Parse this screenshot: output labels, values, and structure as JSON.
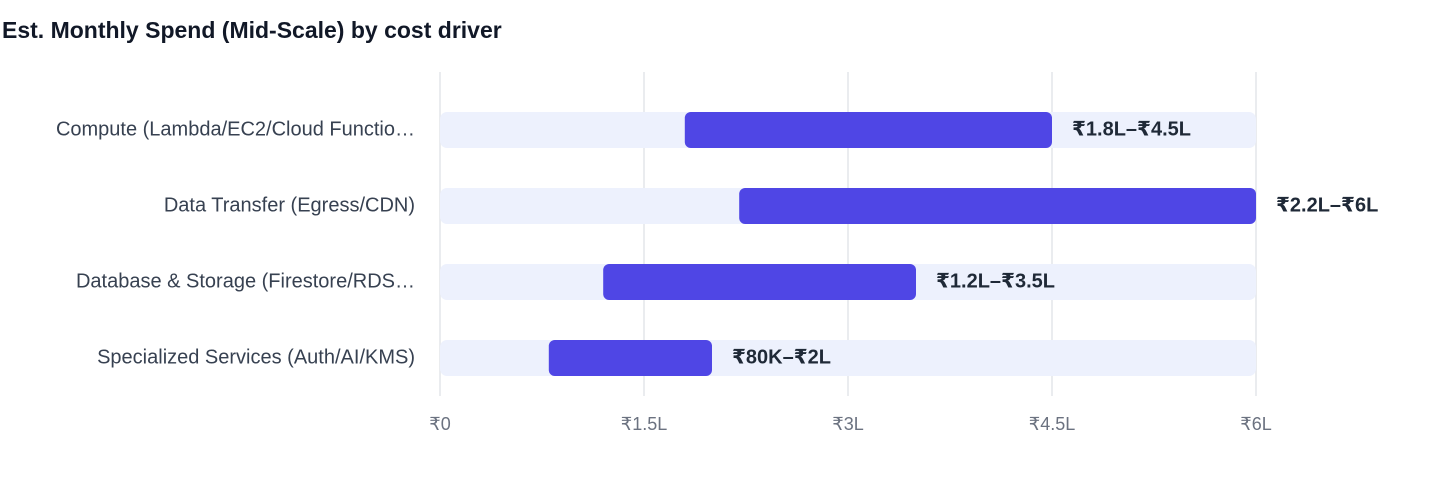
{
  "chart_data": {
    "type": "range-bar",
    "title": "Est. Monthly Spend (Mid-Scale) by cost driver",
    "categories": [
      "Compute (Lambda/EC2/Cloud Functio…",
      "Data Transfer (Egress/CDN)",
      "Database & Storage (Firestore/RDS…",
      "Specialized Services (Auth/AI/KMS)"
    ],
    "low": [
      180000,
      220000,
      120000,
      80000
    ],
    "high": [
      450000,
      600000,
      350000,
      200000
    ],
    "value_labels": [
      "₹1.8L–₹4.5L",
      "₹2.2L–₹6L",
      "₹1.2L–₹3.5L",
      "₹80K–₹2L"
    ],
    "color": "#4f46e5",
    "track_color": "#edf1fd",
    "xlim": [
      0,
      600000
    ],
    "xticks": [
      {
        "value": 0,
        "label": "₹0"
      },
      {
        "value": 150000,
        "label": "₹1.5L"
      },
      {
        "value": 300000,
        "label": "₹3L"
      },
      {
        "value": 450000,
        "label": "₹4.5L"
      },
      {
        "value": 600000,
        "label": "₹6L"
      }
    ],
    "grid": true
  }
}
